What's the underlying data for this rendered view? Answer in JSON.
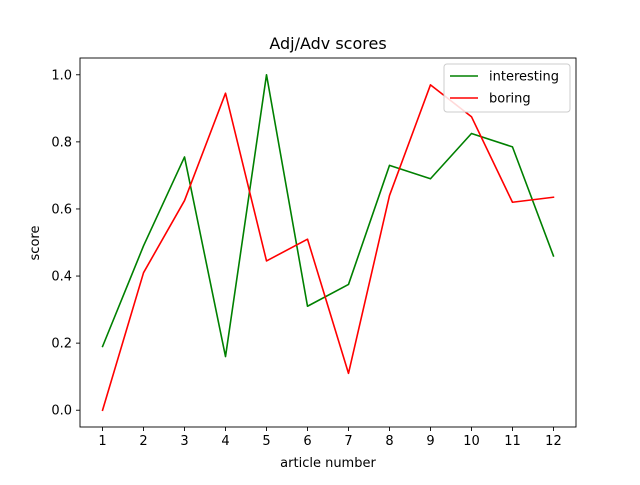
{
  "chart_data": {
    "type": "line",
    "title": "Adj/Adv scores",
    "xlabel": "article number",
    "ylabel": "score",
    "x": [
      1,
      2,
      3,
      4,
      5,
      6,
      7,
      8,
      9,
      10,
      11,
      12
    ],
    "xticks": [
      "1",
      "2",
      "3",
      "4",
      "5",
      "6",
      "7",
      "8",
      "9",
      "10",
      "11",
      "12"
    ],
    "yticks": [
      "0.0",
      "0.2",
      "0.4",
      "0.6",
      "0.8",
      "1.0"
    ],
    "xlim": [
      0.45,
      12.55
    ],
    "ylim": [
      -0.05,
      1.05
    ],
    "grid": false,
    "legend_position": "top-right",
    "series": [
      {
        "name": "interesting",
        "color": "#008000",
        "values": [
          0.19,
          0.49,
          0.755,
          0.16,
          1.0,
          0.31,
          0.375,
          0.73,
          0.69,
          0.825,
          0.785,
          0.46
        ]
      },
      {
        "name": "boring",
        "color": "#ff0000",
        "values": [
          0.0,
          0.41,
          0.625,
          0.945,
          0.445,
          0.51,
          0.11,
          0.64,
          0.97,
          0.875,
          0.62,
          0.635
        ]
      }
    ]
  }
}
